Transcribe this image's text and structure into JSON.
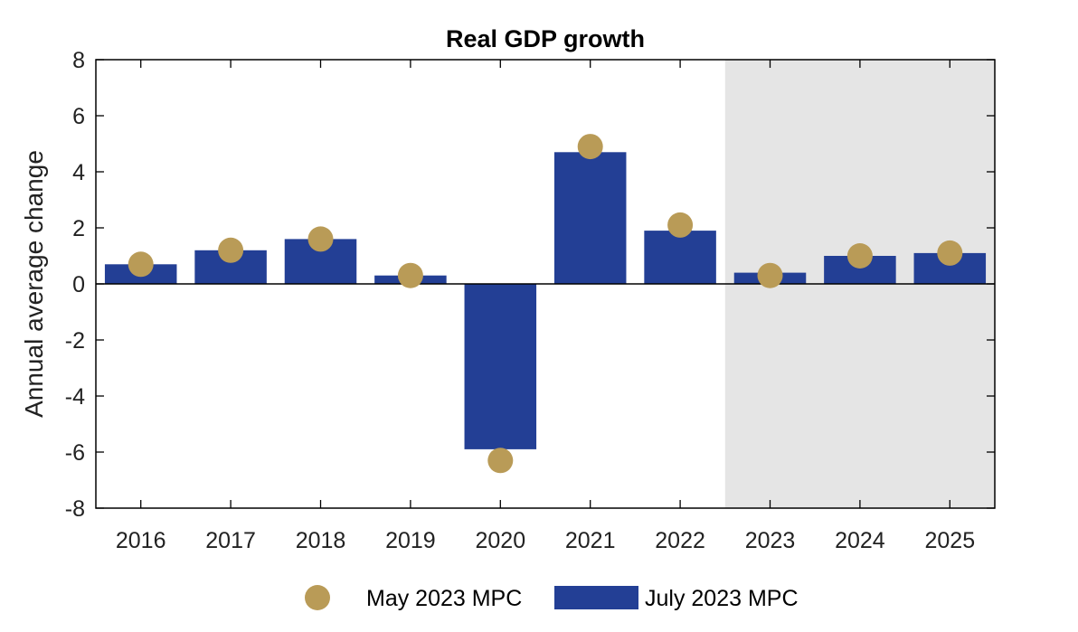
{
  "colors": {
    "bar": "#233f95",
    "dot": "#b99b57",
    "forecast_shade": "#e5e5e5",
    "axis": "#000000"
  },
  "chart_data": {
    "type": "bar",
    "title": "Real GDP growth",
    "xlabel": "",
    "ylabel": "Annual average change",
    "ylim": [
      -8,
      8
    ],
    "yticks": [
      -8,
      -6,
      -4,
      -2,
      0,
      2,
      4,
      6,
      8
    ],
    "categories": [
      "2016",
      "2017",
      "2018",
      "2019",
      "2020",
      "2021",
      "2022",
      "2023",
      "2024",
      "2025"
    ],
    "forecast_start_category": "2023",
    "series": [
      {
        "name": "July 2023 MPC",
        "kind": "bar",
        "values": [
          0.7,
          1.2,
          1.6,
          0.3,
          -5.9,
          4.7,
          1.9,
          0.4,
          1.0,
          1.1
        ]
      },
      {
        "name": "May 2023 MPC",
        "kind": "dot",
        "values": [
          0.7,
          1.2,
          1.6,
          0.3,
          -6.3,
          4.9,
          2.1,
          0.3,
          1.0,
          1.1
        ]
      }
    ],
    "legend": {
      "position": "bottom",
      "entries": [
        "May 2023 MPC",
        "July 2023 MPC"
      ]
    },
    "grid": false
  }
}
